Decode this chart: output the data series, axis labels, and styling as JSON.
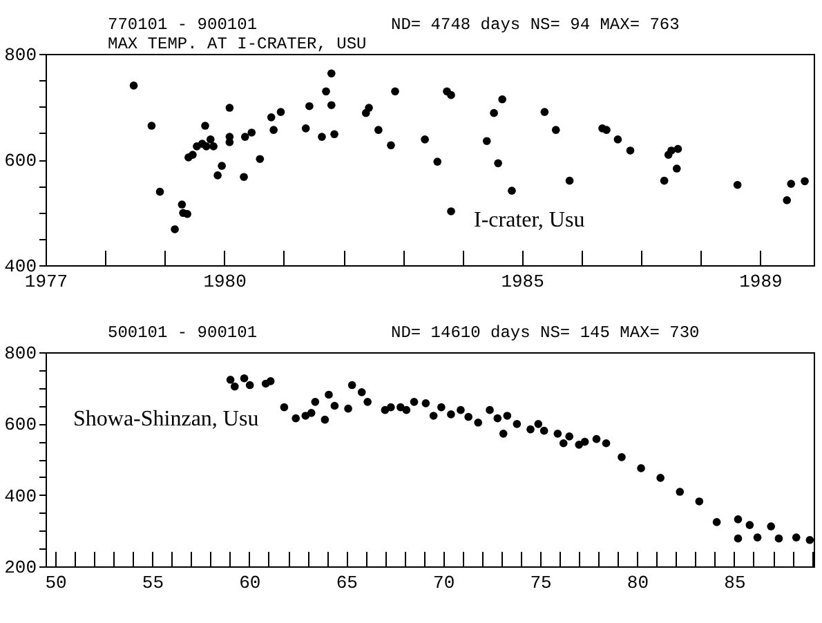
{
  "chart_data": [
    {
      "type": "scatter",
      "title": "770101 - 900101",
      "subtitle": "MAX TEMP. AT I-CRATER, USU",
      "annotations": [
        "ND= 4748 days  NS= 94   MAX= 763",
        "I-crater, Usu"
      ],
      "marker": "circle",
      "grid": false,
      "xlim": [
        1977,
        1989.9
      ],
      "ylim": [
        400,
        800
      ],
      "xticks": [
        1977,
        {
          "value": 1978,
          "label": null
        },
        {
          "value": 1979,
          "label": null
        },
        1980,
        {
          "value": 1981,
          "label": null
        },
        {
          "value": 1982,
          "label": null
        },
        {
          "value": 1983,
          "label": null
        },
        {
          "value": 1984,
          "label": null
        },
        1985,
        {
          "value": 1986,
          "label": null
        },
        {
          "value": 1987,
          "label": null
        },
        {
          "value": 1988,
          "label": null
        },
        1989
      ],
      "yticks": [
        400,
        {
          "value": 450,
          "label": null
        },
        {
          "value": 500,
          "label": null
        },
        {
          "value": 550,
          "label": null
        },
        600,
        {
          "value": 650,
          "label": null
        },
        {
          "value": 700,
          "label": null
        },
        {
          "value": 750,
          "label": null
        },
        800
      ],
      "x": [
        1978.48,
        1978.78,
        1978.92,
        1979.17,
        1979.29,
        1979.31,
        1979.38,
        1979.4,
        1979.47,
        1979.54,
        1979.63,
        1979.68,
        1979.7,
        1979.77,
        1979.82,
        1979.89,
        1979.96,
        1980.09,
        1980.09,
        1980.09,
        1980.33,
        1980.35,
        1980.46,
        1980.6,
        1980.79,
        1980.83,
        1980.95,
        1981.37,
        1981.43,
        1981.64,
        1981.71,
        1981.8,
        1981.8,
        1981.85,
        1982.38,
        1982.43,
        1982.59,
        1982.8,
        1982.87,
        1983.37,
        1983.58,
        1983.74,
        1983.81,
        1983.81,
        1984.41,
        1984.53,
        1984.67,
        1984.6,
        1984.83,
        1985.38,
        1985.57,
        1985.8,
        1986.35,
        1986.42,
        1986.61,
        1986.82,
        1987.39,
        1987.46,
        1987.51,
        1987.62,
        1987.6,
        1988.62,
        1989.45,
        1989.52,
        1989.75
      ],
      "series": [
        {
          "color": "#000000",
          "values": [
            740,
            664,
            539,
            468,
            515,
            499,
            497,
            604,
            609,
            625,
            630,
            664,
            625,
            638,
            625,
            570,
            588,
            698,
            643,
            633,
            567,
            643,
            651,
            601,
            680,
            656,
            690,
            659,
            701,
            643,
            729,
            763,
            703,
            648,
            688,
            698,
            656,
            627,
            729,
            638,
            596,
            729,
            722,
            502,
            635,
            688,
            714,
            593,
            541,
            690,
            656,
            560,
            659,
            656,
            638,
            617,
            560,
            609,
            617,
            620,
            583,
            552,
            523,
            554,
            559
          ]
        }
      ]
    },
    {
      "type": "scatter",
      "title": "500101 - 900101",
      "annotations": [
        "ND= 14610 days  NS= 145   MAX= 730",
        "Showa-Shinzan, Usu"
      ],
      "marker": "circle",
      "grid": false,
      "xlim": [
        49.5,
        89.1
      ],
      "ylim": [
        200,
        800
      ],
      "xticks": [
        50,
        {
          "value": 51,
          "label": null
        },
        {
          "value": 52,
          "label": null
        },
        {
          "value": 53,
          "label": null
        },
        {
          "value": 54,
          "label": null
        },
        55,
        {
          "value": 56,
          "label": null
        },
        {
          "value": 57,
          "label": null
        },
        {
          "value": 58,
          "label": null
        },
        {
          "value": 59,
          "label": null
        },
        60,
        {
          "value": 61,
          "label": null
        },
        {
          "value": 62,
          "label": null
        },
        {
          "value": 63,
          "label": null
        },
        {
          "value": 64,
          "label": null
        },
        65,
        {
          "value": 66,
          "label": null
        },
        {
          "value": 67,
          "label": null
        },
        {
          "value": 68,
          "label": null
        },
        {
          "value": 69,
          "label": null
        },
        70,
        {
          "value": 71,
          "label": null
        },
        {
          "value": 72,
          "label": null
        },
        {
          "value": 73,
          "label": null
        },
        {
          "value": 74,
          "label": null
        },
        75,
        {
          "value": 76,
          "label": null
        },
        {
          "value": 77,
          "label": null
        },
        {
          "value": 78,
          "label": null
        },
        {
          "value": 79,
          "label": null
        },
        80,
        {
          "value": 81,
          "label": null
        },
        {
          "value": 82,
          "label": null
        },
        {
          "value": 83,
          "label": null
        },
        {
          "value": 84,
          "label": null
        },
        85,
        {
          "value": 86,
          "label": null
        },
        {
          "value": 87,
          "label": null
        },
        {
          "value": 88,
          "label": null
        },
        {
          "value": 89,
          "label": null
        }
      ],
      "yticks": [
        200,
        {
          "value": 250,
          "label": null
        },
        {
          "value": 300,
          "label": null
        },
        {
          "value": 350,
          "label": null
        },
        400,
        {
          "value": 450,
          "label": null
        },
        {
          "value": 500,
          "label": null
        },
        {
          "value": 550,
          "label": null
        },
        600,
        {
          "value": 650,
          "label": null
        },
        {
          "value": 700,
          "label": null
        },
        {
          "value": 750,
          "label": null
        },
        800
      ],
      "x": [
        59.03,
        59.25,
        59.74,
        60.03,
        60.85,
        61.1,
        61.8,
        62.4,
        62.9,
        63.2,
        63.4,
        63.9,
        64.1,
        64.4,
        65.1,
        65.3,
        65.8,
        66.1,
        67.0,
        67.3,
        67.8,
        68.1,
        68.5,
        69.1,
        69.5,
        69.9,
        70.4,
        70.9,
        71.3,
        71.8,
        72.4,
        72.8,
        73.3,
        73.1,
        73.8,
        74.5,
        74.9,
        75.2,
        75.9,
        76.2,
        76.5,
        77.0,
        77.3,
        77.9,
        78.4,
        79.2,
        80.2,
        81.2,
        82.2,
        83.2,
        84.1,
        85.2,
        85.2,
        85.8,
        86.2,
        86.9,
        87.3,
        88.2,
        88.9
      ],
      "series": [
        {
          "color": "#000000",
          "values": [
            723,
            704,
            727,
            708,
            712,
            719,
            646,
            615,
            622,
            630,
            661,
            611,
            681,
            650,
            642,
            708,
            688,
            661,
            638,
            646,
            646,
            638,
            661,
            657,
            622,
            646,
            626,
            638,
            619,
            603,
            638,
            615,
            622,
            572,
            599,
            584,
            599,
            580,
            572,
            545,
            564,
            541,
            549,
            557,
            545,
            506,
            475,
            448,
            409,
            382,
            324,
            332,
            278,
            316,
            281,
            312,
            278,
            281,
            274
          ]
        }
      ]
    }
  ]
}
